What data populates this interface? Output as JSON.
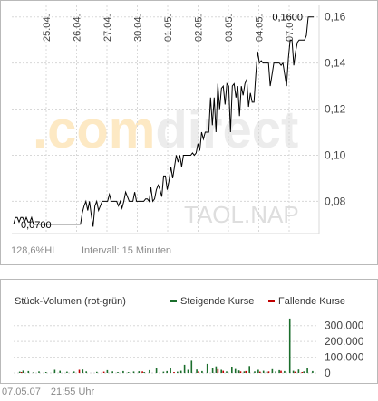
{
  "chart_data": [
    {
      "type": "line",
      "name": "price-chart",
      "x_ticks": [
        "25.04.",
        "26.04.",
        "27.04.",
        "30.04.",
        "01.05.",
        "02.05.",
        "03.05.",
        "04.05.",
        "07.0"
      ],
      "y_ticks": [
        "0,08",
        "0,10",
        "0,12",
        "0,14",
        "0,16"
      ],
      "ylim": [
        0.066,
        0.165
      ],
      "grid": true,
      "series": [
        {
          "color": "#000000",
          "values": [
            0.07,
            0.073,
            0.073,
            0.071,
            0.073,
            0.073,
            0.071,
            0.073,
            0.071,
            0.071,
            0.073,
            0.07,
            0.07,
            0.07,
            0.07,
            0.07,
            0.07,
            0.07,
            0.07,
            0.07,
            0.07,
            0.07,
            0.07,
            0.07,
            0.07,
            0.07,
            0.07,
            0.07,
            0.07,
            0.07,
            0.07,
            0.07,
            0.07,
            0.07,
            0.07,
            0.07,
            0.07,
            0.07,
            0.075,
            0.078,
            0.08,
            0.076,
            0.08,
            0.074,
            0.069,
            0.078,
            0.08,
            0.076,
            0.078,
            0.08,
            0.08,
            0.08,
            0.08,
            0.083,
            0.08,
            0.08,
            0.08,
            0.08,
            0.078,
            0.08,
            0.077,
            0.08,
            0.084,
            0.082,
            0.08,
            0.08,
            0.08,
            0.084,
            0.08,
            0.08,
            0.08,
            0.08,
            0.08,
            0.081,
            0.081,
            0.08,
            0.086,
            0.08,
            0.081,
            0.085,
            0.087,
            0.085,
            0.082,
            0.091,
            0.091,
            0.085,
            0.089,
            0.095,
            0.09,
            0.095,
            0.1,
            0.097,
            0.1,
            0.095,
            0.1,
            0.1,
            0.1,
            0.1,
            0.1,
            0.101,
            0.1,
            0.101,
            0.105,
            0.102,
            0.11,
            0.107,
            0.11,
            0.11,
            0.11,
            0.125,
            0.113,
            0.125,
            0.11,
            0.131,
            0.12,
            0.129,
            0.13,
            0.122,
            0.131,
            0.13,
            0.11,
            0.13,
            0.131,
            0.125,
            0.13,
            0.117,
            0.13,
            0.126,
            0.131,
            0.133,
            0.121,
            0.127,
            0.123,
            0.123,
            0.135,
            0.145,
            0.14,
            0.141,
            0.14,
            0.14,
            0.14,
            0.14,
            0.13,
            0.135,
            0.14,
            0.14,
            0.14,
            0.14,
            0.139,
            0.14,
            0.135,
            0.13,
            0.142,
            0.15,
            0.15,
            0.139,
            0.145,
            0.149,
            0.15,
            0.15,
            0.15,
            0.15,
            0.152,
            0.16,
            0.16,
            0.16,
            0.16
          ]
        }
      ],
      "annotations": [
        {
          "label": "0,0700",
          "y": 0.07,
          "position": "start"
        },
        {
          "label": "0,1600",
          "y": 0.16,
          "position": "end"
        }
      ]
    },
    {
      "type": "bar",
      "name": "volume-chart",
      "title": "Stück-Volumen (rot-grün)",
      "y_ticks": [
        "0",
        "100.000",
        "200.000",
        "300.000"
      ],
      "ylim": [
        0,
        350000
      ],
      "legend_position": "top-right",
      "series": [
        {
          "name": "Steigende Kurse",
          "color": "#1b6e2c",
          "bars": [
            {
              "x": 2,
              "v": 8000
            },
            {
              "x": 4,
              "v": 15000
            },
            {
              "x": 7,
              "v": 12000
            },
            {
              "x": 10,
              "v": 5000
            },
            {
              "x": 13,
              "v": 10000
            },
            {
              "x": 17,
              "v": 6000
            },
            {
              "x": 22,
              "v": 20000
            },
            {
              "x": 25,
              "v": 14000
            },
            {
              "x": 29,
              "v": 8000
            },
            {
              "x": 33,
              "v": 9000
            },
            {
              "x": 38,
              "v": 22000
            },
            {
              "x": 40,
              "v": 10000
            },
            {
              "x": 46,
              "v": 7000
            },
            {
              "x": 52,
              "v": 18000
            },
            {
              "x": 55,
              "v": 10000
            },
            {
              "x": 58,
              "v": 6000
            },
            {
              "x": 61,
              "v": 12000
            },
            {
              "x": 64,
              "v": 5000
            },
            {
              "x": 67,
              "v": 9000
            },
            {
              "x": 70,
              "v": 11000
            },
            {
              "x": 73,
              "v": 6000
            },
            {
              "x": 76,
              "v": 18000
            },
            {
              "x": 80,
              "v": 30000
            },
            {
              "x": 84,
              "v": 8000
            },
            {
              "x": 86,
              "v": 12000
            },
            {
              "x": 88,
              "v": 34000
            },
            {
              "x": 92,
              "v": 8000
            },
            {
              "x": 94,
              "v": 14000
            },
            {
              "x": 96,
              "v": 52000
            },
            {
              "x": 98,
              "v": 20000
            },
            {
              "x": 100,
              "v": 78000
            },
            {
              "x": 103,
              "v": 22000
            },
            {
              "x": 106,
              "v": 12000
            },
            {
              "x": 109,
              "v": 58000
            },
            {
              "x": 112,
              "v": 30000
            },
            {
              "x": 114,
              "v": 42000
            },
            {
              "x": 117,
              "v": 20000
            },
            {
              "x": 120,
              "v": 10000
            },
            {
              "x": 123,
              "v": 40000
            },
            {
              "x": 125,
              "v": 25000
            },
            {
              "x": 127,
              "v": 16000
            },
            {
              "x": 130,
              "v": 10000
            },
            {
              "x": 133,
              "v": 44000
            },
            {
              "x": 136,
              "v": 10000
            },
            {
              "x": 138,
              "v": 20000
            },
            {
              "x": 141,
              "v": 14000
            },
            {
              "x": 143,
              "v": 8000
            },
            {
              "x": 146,
              "v": 24000
            },
            {
              "x": 148,
              "v": 10000
            },
            {
              "x": 150,
              "v": 18000
            },
            {
              "x": 153,
              "v": 12000
            },
            {
              "x": 156,
              "v": 345000
            },
            {
              "x": 158,
              "v": 14000
            },
            {
              "x": 161,
              "v": 22000
            },
            {
              "x": 164,
              "v": 10000
            },
            {
              "x": 166,
              "v": 30000
            },
            {
              "x": 169,
              "v": 12000
            }
          ]
        },
        {
          "name": "Fallende Kurse",
          "color": "#c00000",
          "bars": [
            {
              "x": 3,
              "v": 6000
            },
            {
              "x": 36,
              "v": 20000
            },
            {
              "x": 50,
              "v": 8000
            },
            {
              "x": 72,
              "v": 10000
            },
            {
              "x": 90,
              "v": 6000
            },
            {
              "x": 104,
              "v": 10000
            },
            {
              "x": 115,
              "v": 24000
            },
            {
              "x": 118,
              "v": 14000
            },
            {
              "x": 128,
              "v": 10000
            },
            {
              "x": 131,
              "v": 12000
            },
            {
              "x": 139,
              "v": 8000
            },
            {
              "x": 144,
              "v": 10000
            },
            {
              "x": 151,
              "v": 14000
            },
            {
              "x": 159,
              "v": 8000
            },
            {
              "x": 163,
              "v": 6000
            }
          ]
        }
      ]
    }
  ],
  "stats": {
    "hl_value": "128,6",
    "hl_unit": "%HL",
    "interval": "Intervall: 15 Minuten"
  },
  "watermark": {
    "logo_part1": ".com",
    "logo_part2": "direct",
    "ticker": "TAOL.NAP"
  },
  "footer": {
    "date": "07.05.07",
    "time": "21:55 Uhr"
  },
  "colors": {
    "grid": "#d8d8d8",
    "axis_text": "#444444",
    "line": "#000000",
    "watermark_orange": "#fde9c4",
    "watermark_grey": "#ececec"
  }
}
